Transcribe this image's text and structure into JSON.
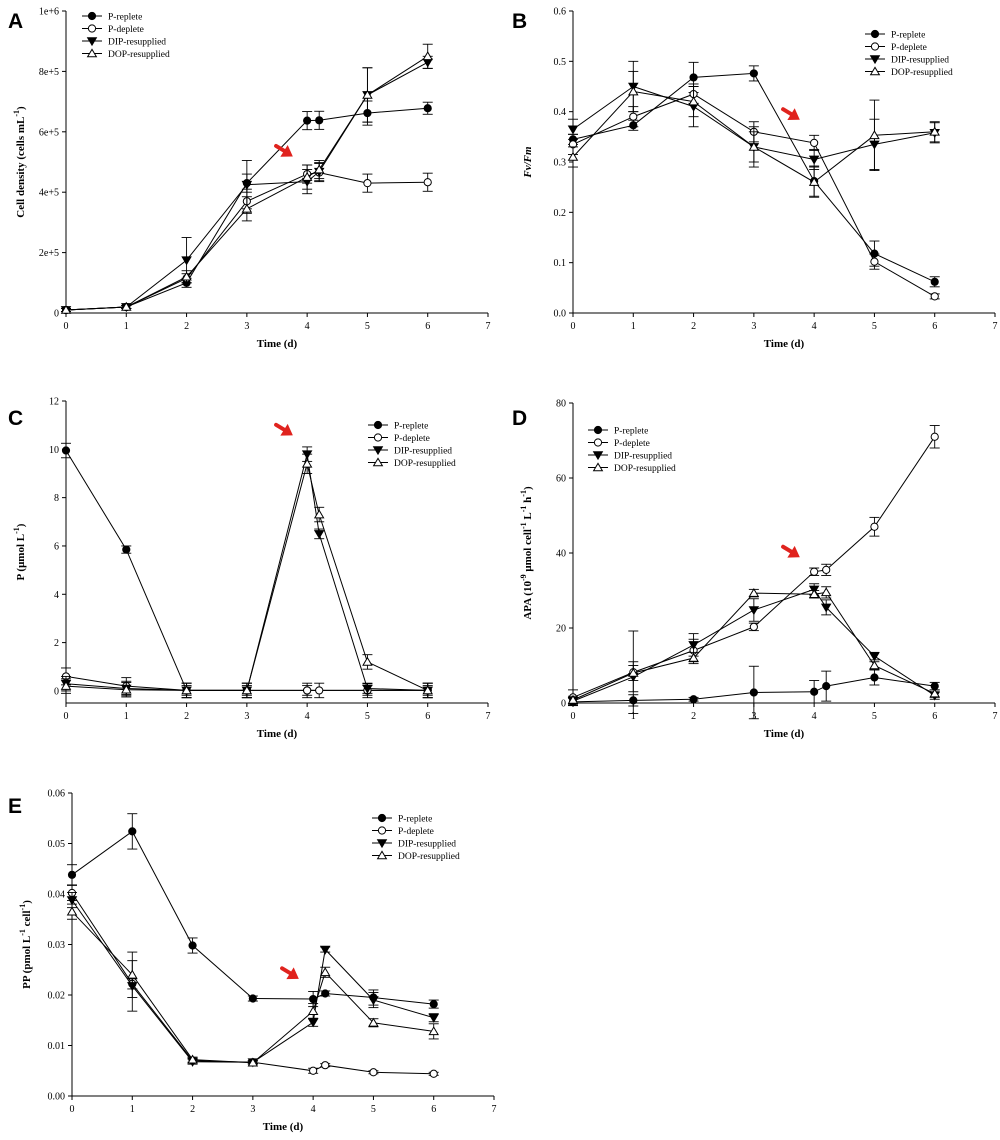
{
  "chart_data": [
    {
      "type": "line",
      "panel": "A",
      "xlabel": "Time (d)",
      "ylabel": "Cell density (cells mL",
      "ylabel_sup": "-1",
      "ylabel_close": ")",
      "xlim": [
        0,
        7
      ],
      "ylim": [
        0,
        1000000
      ],
      "xticks": [
        "0",
        "1",
        "2",
        "3",
        "4",
        "5",
        "6",
        "7"
      ],
      "yticks": [
        {
          "value": 0,
          "label": "0"
        },
        {
          "value": 200000,
          "label": "2e+5"
        },
        {
          "value": 400000,
          "label": "4e+5"
        },
        {
          "value": 600000,
          "label": "6e+5"
        },
        {
          "value": 800000,
          "label": "8e+5"
        },
        {
          "value": 1000000,
          "label": "1e+6"
        }
      ],
      "legend_position": "top-left",
      "arrow": {
        "x": 3.75,
        "y": 520000
      },
      "series": [
        {
          "name": "P-replete",
          "marker": "filled-circle",
          "x": [
            0,
            1,
            2,
            3,
            4,
            4.2,
            5,
            6
          ],
          "y": [
            10000,
            20000,
            100000,
            430000,
            637000,
            638000,
            662000,
            678000
          ],
          "err": [
            5000,
            5000,
            15000,
            30000,
            30000,
            30000,
            40000,
            20000
          ]
        },
        {
          "name": "P-deplete",
          "marker": "open-circle",
          "x": [
            0,
            1,
            2,
            3,
            4,
            4.2,
            5,
            6
          ],
          "y": [
            10000,
            20000,
            115000,
            370000,
            460000,
            465000,
            430000,
            433000
          ],
          "err": [
            5000,
            5000,
            15000,
            40000,
            30000,
            30000,
            30000,
            30000
          ]
        },
        {
          "name": "DIP-resupplied",
          "marker": "filled-triangle-down",
          "x": [
            0,
            1,
            2,
            3,
            4,
            4.2,
            5,
            6
          ],
          "y": [
            10000,
            20000,
            175000,
            425000,
            435000,
            468000,
            722000,
            830000
          ],
          "err": [
            5000,
            5000,
            75000,
            80000,
            40000,
            30000,
            90000,
            20000
          ]
        },
        {
          "name": "DOP-resupplied",
          "marker": "open-triangle-up",
          "x": [
            0,
            1,
            2,
            3,
            4,
            4.2,
            5,
            6
          ],
          "y": [
            10000,
            20000,
            120000,
            345000,
            450000,
            475000,
            722000,
            850000
          ],
          "err": [
            5000,
            5000,
            20000,
            40000,
            40000,
            30000,
            90000,
            40000
          ]
        }
      ]
    },
    {
      "type": "line",
      "panel": "B",
      "xlabel": "Time (d)",
      "ylabel": "Fv/Fm",
      "ylabel_sup": "",
      "ylabel_close": "",
      "ylabel_italic": true,
      "xlim": [
        0,
        7
      ],
      "ylim": [
        0,
        0.6
      ],
      "xticks": [
        "0",
        "1",
        "2",
        "3",
        "4",
        "5",
        "6",
        "7"
      ],
      "yticks": [
        {
          "value": 0,
          "label": "0.0"
        },
        {
          "value": 0.1,
          "label": "0.1"
        },
        {
          "value": 0.2,
          "label": "0.2"
        },
        {
          "value": 0.3,
          "label": "0.3"
        },
        {
          "value": 0.4,
          "label": "0.4"
        },
        {
          "value": 0.5,
          "label": "0.5"
        },
        {
          "value": 0.6,
          "label": "0.6"
        }
      ],
      "legend_position": "top-right",
      "arrow": {
        "x": 3.75,
        "y": 0.385
      },
      "series": [
        {
          "name": "P-replete",
          "marker": "filled-circle",
          "x": [
            0,
            1,
            2,
            3,
            4,
            5,
            6
          ],
          "y": [
            0.345,
            0.373,
            0.468,
            0.476,
            0.262,
            0.118,
            0.062
          ],
          "err": [
            0.01,
            0.01,
            0.03,
            0.015,
            0.03,
            0.025,
            0.01
          ]
        },
        {
          "name": "P-deplete",
          "marker": "open-circle",
          "x": [
            0,
            1,
            2,
            3,
            4,
            5,
            6
          ],
          "y": [
            0.335,
            0.39,
            0.435,
            0.36,
            0.338,
            0.102,
            0.033
          ],
          "err": [
            0.02,
            0.02,
            0.02,
            0.02,
            0.015,
            0.015,
            0.005
          ]
        },
        {
          "name": "DIP-resupplied",
          "marker": "filled-triangle-down",
          "x": [
            0,
            1,
            2,
            3,
            4,
            5,
            6
          ],
          "y": [
            0.365,
            0.45,
            0.41,
            0.33,
            0.305,
            0.335,
            0.358
          ],
          "err": [
            0.02,
            0.05,
            0.04,
            0.04,
            0.02,
            0.05,
            0.02
          ]
        },
        {
          "name": "DOP-resupplied",
          "marker": "open-triangle-up",
          "x": [
            0,
            1,
            2,
            3,
            4,
            5,
            6
          ],
          "y": [
            0.31,
            0.44,
            0.42,
            0.33,
            0.26,
            0.353,
            0.36
          ],
          "err": [
            0.02,
            0.04,
            0.03,
            0.03,
            0.03,
            0.07,
            0.02
          ]
        }
      ]
    },
    {
      "type": "line",
      "panel": "C",
      "xlabel": "Time (d)",
      "ylabel": "P (μmol L",
      "ylabel_sup": "-1",
      "ylabel_close": ")",
      "xlim": [
        0,
        7
      ],
      "ylim": [
        -0.5,
        12
      ],
      "xticks": [
        "0",
        "1",
        "2",
        "3",
        "4",
        "5",
        "6",
        "7"
      ],
      "yticks": [
        {
          "value": 0,
          "label": "0"
        },
        {
          "value": 2,
          "label": "2"
        },
        {
          "value": 4,
          "label": "4"
        },
        {
          "value": 6,
          "label": "6"
        },
        {
          "value": 8,
          "label": "8"
        },
        {
          "value": 10,
          "label": "10"
        },
        {
          "value": 12,
          "label": "12"
        }
      ],
      "legend_position": "top-right",
      "arrow": {
        "x": 3.75,
        "y": 10.6
      },
      "series": [
        {
          "name": "P-replete",
          "marker": "filled-circle",
          "x": [
            0,
            1,
            2,
            3,
            4,
            5,
            6
          ],
          "y": [
            9.95,
            5.85,
            0.02,
            0.02,
            0.02,
            0.02,
            0.02
          ],
          "err": [
            0.3,
            0.15,
            0.2,
            0.2,
            0.2,
            0.2,
            0.2
          ]
        },
        {
          "name": "P-deplete",
          "marker": "open-circle",
          "x": [
            0,
            1,
            2,
            3,
            4,
            4.2,
            5,
            6
          ],
          "y": [
            0.6,
            0.2,
            0.02,
            0.02,
            0.02,
            0.02,
            0.02,
            0.02
          ],
          "err": [
            0.35,
            0.35,
            0.3,
            0.3,
            0.3,
            0.3,
            0.3,
            0.3
          ]
        },
        {
          "name": "DIP-resupplied",
          "marker": "filled-triangle-down",
          "x": [
            0,
            1,
            2,
            3,
            4,
            4.2,
            5,
            6
          ],
          "y": [
            0.3,
            0.1,
            0.02,
            0.02,
            9.8,
            6.5,
            0.1,
            0.02
          ],
          "err": [
            0.3,
            0.3,
            0.3,
            0.3,
            0.3,
            0.2,
            0.2,
            0.3
          ]
        },
        {
          "name": "DOP-resupplied",
          "marker": "open-triangle-up",
          "x": [
            0,
            1,
            2,
            3,
            4,
            4.2,
            5,
            6
          ],
          "y": [
            0.2,
            0.05,
            0.02,
            0.02,
            9.4,
            7.3,
            1.2,
            0.02
          ],
          "err": [
            0.3,
            0.3,
            0.3,
            0.3,
            0.4,
            0.3,
            0.3,
            0.3
          ]
        }
      ]
    },
    {
      "type": "line",
      "panel": "D",
      "xlabel": "Time (d)",
      "ylabel": "APA (10",
      "ylabel_sup": "-9",
      "ylabel_rest": " μmol cell",
      "ylabel_sup2": "-1",
      "ylabel_rest2": " L",
      "ylabel_sup3": "-1",
      "ylabel_rest3": " h",
      "ylabel_sup4": "-1",
      "ylabel_close": ")",
      "xlim": [
        0,
        7
      ],
      "ylim": [
        0,
        80
      ],
      "xticks": [
        "0",
        "1",
        "2",
        "3",
        "4",
        "5",
        "6",
        "7"
      ],
      "yticks": [
        {
          "value": 0,
          "label": "0"
        },
        {
          "value": 20,
          "label": "20"
        },
        {
          "value": 40,
          "label": "40"
        },
        {
          "value": 60,
          "label": "60"
        },
        {
          "value": 80,
          "label": "80"
        }
      ],
      "legend_position": "top-left",
      "arrow": {
        "x": 3.75,
        "y": 39
      },
      "series": [
        {
          "name": "P-replete",
          "marker": "filled-circle",
          "x": [
            0,
            1,
            2,
            3,
            4,
            4.2,
            5,
            6
          ],
          "y": [
            0.3,
            0.7,
            1.0,
            2.8,
            3.0,
            4.5,
            6.8,
            4.5
          ],
          "err": [
            1.0,
            1.5,
            0.5,
            7.0,
            3.0,
            4.0,
            2.0,
            1.0
          ]
        },
        {
          "name": "P-deplete",
          "marker": "open-circle",
          "x": [
            0,
            1,
            2,
            3,
            4,
            4.2,
            5,
            6
          ],
          "y": [
            1.5,
            8.2,
            14.0,
            20.3,
            35.0,
            35.5,
            47.0,
            71.0
          ],
          "err": [
            2.0,
            11.0,
            3.0,
            1.0,
            1.0,
            1.5,
            2.5,
            3.0
          ]
        },
        {
          "name": "DIP-resupplied",
          "marker": "filled-triangle-down",
          "x": [
            0,
            1,
            2,
            3,
            4,
            4.2,
            5,
            6
          ],
          "y": [
            0.5,
            7.0,
            15.5,
            24.8,
            30.3,
            25.5,
            12.5,
            2.0
          ],
          "err": [
            1.0,
            4.0,
            3.0,
            3.0,
            1.5,
            2.0,
            1.0,
            1.0
          ]
        },
        {
          "name": "DOP-resupplied",
          "marker": "open-triangle-up",
          "x": [
            0,
            1,
            2,
            3,
            4,
            4.2,
            5,
            6
          ],
          "y": [
            0.8,
            8.0,
            12.0,
            29.3,
            29.0,
            29.5,
            10.0,
            2.5
          ],
          "err": [
            1.0,
            2.0,
            1.5,
            1.0,
            1.0,
            1.5,
            1.0,
            1.0
          ]
        }
      ]
    },
    {
      "type": "line",
      "panel": "E",
      "xlabel": "Time (d)",
      "ylabel": "PP (pmol L",
      "ylabel_sup": "-1",
      "ylabel_rest": " cell",
      "ylabel_sup2": "-1",
      "ylabel_close": ")",
      "xlim": [
        0,
        7
      ],
      "ylim": [
        0,
        0.06
      ],
      "xticks": [
        "0",
        "1",
        "2",
        "3",
        "4",
        "5",
        "6",
        "7"
      ],
      "yticks": [
        {
          "value": 0,
          "label": "0.00"
        },
        {
          "value": 0.01,
          "label": "0.01"
        },
        {
          "value": 0.02,
          "label": "0.02"
        },
        {
          "value": 0.03,
          "label": "0.03"
        },
        {
          "value": 0.04,
          "label": "0.04"
        },
        {
          "value": 0.05,
          "label": "0.05"
        },
        {
          "value": 0.06,
          "label": "0.06"
        }
      ],
      "legend_position": "top-right",
      "arrow": {
        "x": 3.75,
        "y": 0.0233
      },
      "series": [
        {
          "name": "P-replete",
          "marker": "filled-circle",
          "x": [
            0,
            1,
            2,
            3,
            4,
            4.2,
            5,
            6
          ],
          "y": [
            0.0438,
            0.0524,
            0.0298,
            0.0193,
            0.0192,
            0.0203,
            0.0195,
            0.0182
          ],
          "err": [
            0.002,
            0.0035,
            0.0015,
            0.0005,
            0.0015,
            0.0005,
            0.0015,
            0.0008
          ]
        },
        {
          "name": "P-deplete",
          "marker": "open-circle",
          "x": [
            0,
            1,
            2,
            3,
            4,
            4.2,
            5,
            6
          ],
          "y": [
            0.0402,
            0.0222,
            0.007,
            0.0067,
            0.005,
            0.0061,
            0.0047,
            0.0044
          ],
          "err": [
            0.0015,
            0.001,
            0.0005,
            0.0003,
            0.0005,
            0.0003,
            0.0003,
            0.0003
          ]
        },
        {
          "name": "DIP-resupplied",
          "marker": "filled-triangle-down",
          "x": [
            0,
            1,
            2,
            3,
            4,
            4.2,
            5,
            6
          ],
          "y": [
            0.0388,
            0.0218,
            0.0068,
            0.0067,
            0.0146,
            0.029,
            0.019,
            0.0155
          ],
          "err": [
            0.0015,
            0.005,
            0.0005,
            0.0003,
            0.0008,
            0.0005,
            0.0015,
            0.0008
          ]
        },
        {
          "name": "DOP-resupplied",
          "marker": "open-triangle-up",
          "x": [
            0,
            1,
            2,
            3,
            4,
            4.2,
            5,
            6
          ],
          "y": [
            0.0365,
            0.024,
            0.0072,
            0.0066,
            0.0168,
            0.0245,
            0.0145,
            0.0128
          ],
          "err": [
            0.0015,
            0.0045,
            0.0005,
            0.0003,
            0.0015,
            0.001,
            0.0008,
            0.0015
          ]
        }
      ]
    }
  ]
}
